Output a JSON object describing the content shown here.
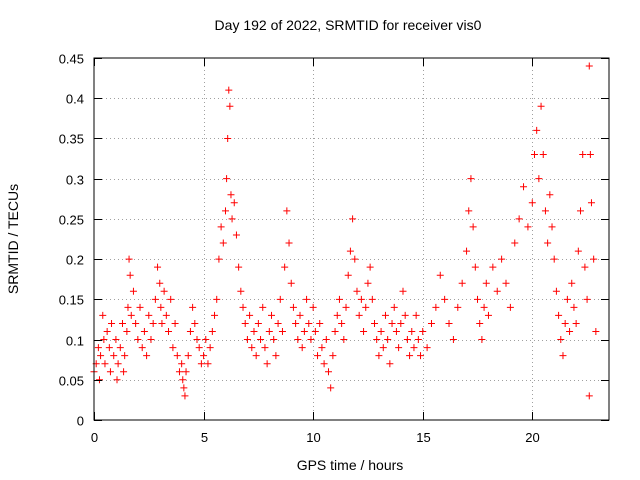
{
  "chart_data": {
    "type": "scatter",
    "title": "Day 192 of 2022, SRMTID for receiver vis0",
    "xlabel": "GPS time / hours",
    "ylabel": "SRMTID / TECUs",
    "xlim": [
      0,
      23.5
    ],
    "ylim": [
      0,
      0.45
    ],
    "xticks": [
      0,
      5,
      10,
      15,
      20
    ],
    "xtick_labels": [
      "0",
      "5",
      "10",
      "15",
      "20"
    ],
    "yticks": [
      0,
      0.05,
      0.1,
      0.15,
      0.2,
      0.25,
      0.3,
      0.35,
      0.4,
      0.45
    ],
    "ytick_labels": [
      "0",
      "0.05",
      "0.1",
      "0.15",
      "0.2",
      "0.25",
      "0.3",
      "0.35",
      "0.4",
      "0.45"
    ],
    "grid": true,
    "marker": "plus",
    "color": "#ff0000",
    "series": [
      {
        "name": "vis0",
        "points": [
          [
            0.0,
            0.06
          ],
          [
            0.1,
            0.07
          ],
          [
            0.2,
            0.09
          ],
          [
            0.25,
            0.05
          ],
          [
            0.3,
            0.08
          ],
          [
            0.4,
            0.13
          ],
          [
            0.45,
            0.1
          ],
          [
            0.5,
            0.07
          ],
          [
            0.6,
            0.11
          ],
          [
            0.7,
            0.09
          ],
          [
            0.75,
            0.06
          ],
          [
            0.8,
            0.12
          ],
          [
            0.9,
            0.08
          ],
          [
            1.0,
            0.1
          ],
          [
            1.05,
            0.05
          ],
          [
            1.1,
            0.07
          ],
          [
            1.2,
            0.09
          ],
          [
            1.3,
            0.12
          ],
          [
            1.35,
            0.06
          ],
          [
            1.4,
            0.08
          ],
          [
            1.5,
            0.11
          ],
          [
            1.55,
            0.14
          ],
          [
            1.6,
            0.2
          ],
          [
            1.65,
            0.18
          ],
          [
            1.7,
            0.13
          ],
          [
            1.8,
            0.16
          ],
          [
            1.9,
            0.12
          ],
          [
            2.0,
            0.1
          ],
          [
            2.1,
            0.14
          ],
          [
            2.2,
            0.09
          ],
          [
            2.3,
            0.11
          ],
          [
            2.4,
            0.08
          ],
          [
            2.5,
            0.13
          ],
          [
            2.6,
            0.1
          ],
          [
            2.7,
            0.12
          ],
          [
            2.8,
            0.15
          ],
          [
            2.9,
            0.19
          ],
          [
            3.0,
            0.17
          ],
          [
            3.05,
            0.14
          ],
          [
            3.1,
            0.12
          ],
          [
            3.2,
            0.16
          ],
          [
            3.3,
            0.13
          ],
          [
            3.4,
            0.11
          ],
          [
            3.5,
            0.15
          ],
          [
            3.6,
            0.09
          ],
          [
            3.7,
            0.12
          ],
          [
            3.8,
            0.08
          ],
          [
            3.9,
            0.06
          ],
          [
            4.0,
            0.07
          ],
          [
            4.05,
            0.05
          ],
          [
            4.1,
            0.04
          ],
          [
            4.15,
            0.03
          ],
          [
            4.2,
            0.06
          ],
          [
            4.3,
            0.08
          ],
          [
            4.4,
            0.11
          ],
          [
            4.5,
            0.14
          ],
          [
            4.6,
            0.12
          ],
          [
            4.7,
            0.1
          ],
          [
            4.8,
            0.09
          ],
          [
            4.9,
            0.07
          ],
          [
            5.0,
            0.08
          ],
          [
            5.1,
            0.1
          ],
          [
            5.2,
            0.07
          ],
          [
            5.3,
            0.09
          ],
          [
            5.4,
            0.11
          ],
          [
            5.5,
            0.13
          ],
          [
            5.6,
            0.15
          ],
          [
            5.7,
            0.2
          ],
          [
            5.8,
            0.24
          ],
          [
            5.9,
            0.22
          ],
          [
            6.0,
            0.26
          ],
          [
            6.05,
            0.3
          ],
          [
            6.1,
            0.35
          ],
          [
            6.15,
            0.41
          ],
          [
            6.2,
            0.39
          ],
          [
            6.25,
            0.28
          ],
          [
            6.3,
            0.25
          ],
          [
            6.4,
            0.27
          ],
          [
            6.5,
            0.23
          ],
          [
            6.6,
            0.19
          ],
          [
            6.7,
            0.16
          ],
          [
            6.8,
            0.14
          ],
          [
            6.9,
            0.12
          ],
          [
            7.0,
            0.1
          ],
          [
            7.1,
            0.13
          ],
          [
            7.2,
            0.09
          ],
          [
            7.3,
            0.11
          ],
          [
            7.4,
            0.08
          ],
          [
            7.5,
            0.12
          ],
          [
            7.6,
            0.1
          ],
          [
            7.7,
            0.14
          ],
          [
            7.8,
            0.09
          ],
          [
            7.9,
            0.07
          ],
          [
            8.0,
            0.11
          ],
          [
            8.1,
            0.13
          ],
          [
            8.2,
            0.1
          ],
          [
            8.3,
            0.08
          ],
          [
            8.4,
            0.12
          ],
          [
            8.5,
            0.15
          ],
          [
            8.6,
            0.11
          ],
          [
            8.7,
            0.19
          ],
          [
            8.8,
            0.26
          ],
          [
            8.9,
            0.22
          ],
          [
            9.0,
            0.17
          ],
          [
            9.1,
            0.14
          ],
          [
            9.2,
            0.12
          ],
          [
            9.3,
            0.1
          ],
          [
            9.4,
            0.13
          ],
          [
            9.5,
            0.09
          ],
          [
            9.6,
            0.11
          ],
          [
            9.7,
            0.15
          ],
          [
            9.8,
            0.12
          ],
          [
            9.9,
            0.1
          ],
          [
            10.0,
            0.14
          ],
          [
            10.1,
            0.11
          ],
          [
            10.2,
            0.08
          ],
          [
            10.3,
            0.12
          ],
          [
            10.4,
            0.09
          ],
          [
            10.5,
            0.07
          ],
          [
            10.6,
            0.1
          ],
          [
            10.7,
            0.06
          ],
          [
            10.8,
            0.04
          ],
          [
            10.9,
            0.08
          ],
          [
            11.0,
            0.11
          ],
          [
            11.1,
            0.13
          ],
          [
            11.2,
            0.15
          ],
          [
            11.3,
            0.12
          ],
          [
            11.4,
            0.1
          ],
          [
            11.5,
            0.14
          ],
          [
            11.6,
            0.18
          ],
          [
            11.7,
            0.21
          ],
          [
            11.8,
            0.25
          ],
          [
            11.9,
            0.2
          ],
          [
            12.0,
            0.16
          ],
          [
            12.1,
            0.13
          ],
          [
            12.2,
            0.15
          ],
          [
            12.3,
            0.11
          ],
          [
            12.4,
            0.14
          ],
          [
            12.5,
            0.17
          ],
          [
            12.6,
            0.19
          ],
          [
            12.7,
            0.15
          ],
          [
            12.8,
            0.12
          ],
          [
            12.9,
            0.1
          ],
          [
            13.0,
            0.08
          ],
          [
            13.1,
            0.11
          ],
          [
            13.2,
            0.09
          ],
          [
            13.3,
            0.13
          ],
          [
            13.4,
            0.1
          ],
          [
            13.5,
            0.07
          ],
          [
            13.6,
            0.12
          ],
          [
            13.7,
            0.14
          ],
          [
            13.8,
            0.11
          ],
          [
            13.9,
            0.09
          ],
          [
            14.0,
            0.12
          ],
          [
            14.1,
            0.16
          ],
          [
            14.2,
            0.13
          ],
          [
            14.3,
            0.1
          ],
          [
            14.4,
            0.08
          ],
          [
            14.5,
            0.11
          ],
          [
            14.6,
            0.09
          ],
          [
            14.7,
            0.13
          ],
          [
            14.8,
            0.1
          ],
          [
            14.9,
            0.08
          ],
          [
            15.0,
            0.11
          ],
          [
            15.2,
            0.09
          ],
          [
            15.4,
            0.12
          ],
          [
            15.6,
            0.14
          ],
          [
            15.8,
            0.18
          ],
          [
            16.0,
            0.15
          ],
          [
            16.2,
            0.12
          ],
          [
            16.4,
            0.1
          ],
          [
            16.6,
            0.14
          ],
          [
            16.8,
            0.17
          ],
          [
            17.0,
            0.21
          ],
          [
            17.1,
            0.26
          ],
          [
            17.2,
            0.3
          ],
          [
            17.3,
            0.24
          ],
          [
            17.4,
            0.19
          ],
          [
            17.5,
            0.15
          ],
          [
            17.6,
            0.12
          ],
          [
            17.7,
            0.1
          ],
          [
            17.8,
            0.14
          ],
          [
            17.9,
            0.17
          ],
          [
            18.0,
            0.13
          ],
          [
            18.2,
            0.19
          ],
          [
            18.4,
            0.16
          ],
          [
            18.6,
            0.2
          ],
          [
            18.8,
            0.17
          ],
          [
            19.0,
            0.14
          ],
          [
            19.2,
            0.22
          ],
          [
            19.4,
            0.25
          ],
          [
            19.6,
            0.29
          ],
          [
            19.8,
            0.24
          ],
          [
            20.0,
            0.27
          ],
          [
            20.1,
            0.33
          ],
          [
            20.2,
            0.36
          ],
          [
            20.3,
            0.3
          ],
          [
            20.4,
            0.39
          ],
          [
            20.5,
            0.33
          ],
          [
            20.6,
            0.26
          ],
          [
            20.7,
            0.22
          ],
          [
            20.8,
            0.28
          ],
          [
            20.9,
            0.24
          ],
          [
            21.0,
            0.2
          ],
          [
            21.1,
            0.16
          ],
          [
            21.2,
            0.13
          ],
          [
            21.3,
            0.1
          ],
          [
            21.4,
            0.08
          ],
          [
            21.5,
            0.12
          ],
          [
            21.6,
            0.15
          ],
          [
            21.7,
            0.11
          ],
          [
            21.8,
            0.17
          ],
          [
            21.9,
            0.14
          ],
          [
            22.0,
            0.12
          ],
          [
            22.1,
            0.21
          ],
          [
            22.2,
            0.26
          ],
          [
            22.3,
            0.33
          ],
          [
            22.4,
            0.19
          ],
          [
            22.5,
            0.15
          ],
          [
            22.6,
            0.44
          ],
          [
            22.65,
            0.33
          ],
          [
            22.7,
            0.27
          ],
          [
            22.8,
            0.2
          ],
          [
            22.9,
            0.11
          ],
          [
            22.6,
            0.03
          ]
        ]
      }
    ]
  }
}
